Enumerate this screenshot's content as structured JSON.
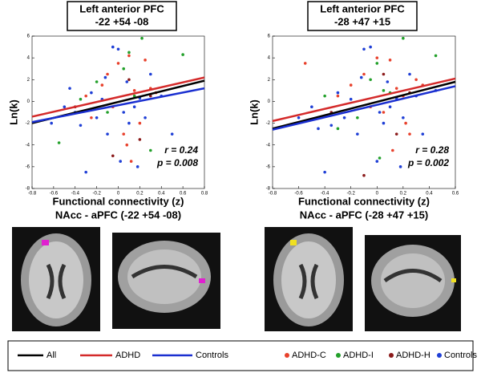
{
  "chart_data": [
    {
      "type": "scatter",
      "title": [
        "Left anterior PFC",
        "-22 +54 -08"
      ],
      "xlabel": [
        "Functional connectivity (z)",
        "NAcc - aPFC (-22 +54 -08)"
      ],
      "ylabel": "Ln(k)",
      "annotations": [
        "r = 0.24",
        "p = 0.008"
      ],
      "xlim": [
        -0.8,
        0.8
      ],
      "ylim": [
        -8,
        6
      ],
      "xticks": [
        -0.8,
        -0.6,
        -0.4,
        -0.2,
        0,
        0.2,
        0.4,
        0.6,
        0.8
      ],
      "yticks": [
        -8,
        -6,
        -4,
        -2,
        0,
        2,
        4,
        6
      ],
      "series": [
        {
          "name": "All",
          "mark": "line",
          "color": "#000000",
          "x": [
            -0.8,
            0.8
          ],
          "values": [
            -2,
            1.9
          ]
        },
        {
          "name": "ADHD",
          "mark": "line",
          "color": "#d42a2a",
          "x": [
            -0.8,
            0.8
          ],
          "values": [
            -1.4,
            2.2
          ]
        },
        {
          "name": "Controls",
          "mark": "line",
          "color": "#1a2fd0",
          "x": [
            -0.8,
            0.8
          ],
          "values": [
            -1.9,
            1.2
          ]
        },
        {
          "name": "ADHD-C",
          "mark": "dot",
          "color": "#e8412c",
          "x": [
            -0.3,
            -0.25,
            -0.1,
            0,
            0.05,
            0.1,
            0.15,
            0.2,
            0.25,
            0.3,
            -0.05,
            0.08,
            0.35,
            -0.15,
            0.12
          ],
          "values": [
            0.5,
            -1.5,
            2.5,
            3.5,
            -3,
            4.2,
            1,
            -2,
            3.8,
            1.2,
            -0.5,
            -4,
            0.8,
            1.5,
            -5.5
          ]
        },
        {
          "name": "ADHD-I",
          "mark": "dot",
          "color": "#22a02a",
          "x": [
            -0.55,
            -0.2,
            0.05,
            0.1,
            0.22,
            0.6,
            -0.1,
            0.15,
            0.3,
            -0.35
          ],
          "values": [
            -3.8,
            1.8,
            3,
            4.5,
            5.8,
            4.3,
            -1,
            0.5,
            -4.5,
            0.2
          ]
        },
        {
          "name": "ADHD-H",
          "mark": "dot",
          "color": "#8b1a1a",
          "x": [
            -0.4,
            0.1,
            0.2,
            -0.05,
            0.3
          ],
          "values": [
            -0.5,
            2,
            -3.5,
            -5,
            0.5
          ]
        },
        {
          "name": "Controls",
          "mark": "dot",
          "color": "#1f3fd6",
          "x": [
            -0.62,
            -0.5,
            -0.4,
            -0.3,
            -0.25,
            -0.2,
            -0.15,
            -0.1,
            -0.05,
            0,
            0.02,
            0.05,
            0.1,
            0.15,
            0.2,
            0.25,
            0.3,
            0.4,
            0.5,
            -0.45,
            -0.35,
            0.08,
            0.18,
            -0.12
          ],
          "values": [
            -2,
            -0.5,
            -1,
            -6.5,
            0.8,
            -1.5,
            0.2,
            -3,
            5,
            4.8,
            -5.5,
            -1,
            -2,
            -0.5,
            0.3,
            -1.5,
            2.5,
            0.5,
            -3,
            1.2,
            -2.2,
            1.8,
            -6,
            2.2
          ]
        }
      ]
    },
    {
      "type": "scatter",
      "title": [
        "Left anterior PFC",
        "-28 +47 +15"
      ],
      "xlabel": [
        "Functional connectivity (z)",
        "NAcc - aPFC (-28 +47 +15)"
      ],
      "ylabel": "Ln(k)",
      "annotations": [
        "r = 0.28",
        "p = 0.002"
      ],
      "xlim": [
        -0.8,
        0.6
      ],
      "ylim": [
        -8,
        6
      ],
      "xticks": [
        -0.8,
        -0.6,
        -0.4,
        -0.2,
        0,
        0.2,
        0.4,
        0.6
      ],
      "yticks": [
        -8,
        -6,
        -4,
        -2,
        0,
        2,
        4,
        6
      ],
      "series": [
        {
          "mark": "line",
          "color": "#000000",
          "x": [
            -0.8,
            0.6
          ],
          "values": [
            -2.5,
            1.8
          ]
        },
        {
          "mark": "line",
          "color": "#d42a2a",
          "x": [
            -0.8,
            0.6
          ],
          "values": [
            -1.8,
            2.1
          ]
        },
        {
          "mark": "line",
          "color": "#1a2fd0",
          "x": [
            -0.8,
            0.6
          ],
          "values": [
            -2.6,
            1.4
          ]
        },
        {
          "mark": "dot",
          "color": "#e8412c",
          "x": [
            -0.55,
            -0.3,
            -0.2,
            -0.1,
            0,
            0.05,
            0.1,
            0.15,
            0.2,
            0.25,
            0.3,
            -0.05,
            0.12,
            0.35,
            0.22
          ],
          "values": [
            3.5,
            0.5,
            1.5,
            2.5,
            4,
            -1,
            3.8,
            1.2,
            0.5,
            -3,
            2,
            -0.5,
            -4.5,
            1.5,
            -2
          ]
        },
        {
          "mark": "dot",
          "color": "#22a02a",
          "x": [
            -0.3,
            -0.05,
            0,
            0.05,
            0.2,
            0.45,
            -0.15,
            0.1,
            0.02,
            -0.4
          ],
          "values": [
            -2.5,
            2,
            3.5,
            1,
            5.8,
            4.2,
            -1.5,
            0.8,
            -5.2,
            0.5
          ]
        },
        {
          "mark": "dot",
          "color": "#8b1a1a",
          "x": [
            -0.35,
            0.05,
            0.15,
            -0.1,
            0.25
          ],
          "values": [
            -1,
            2.5,
            -3,
            -6.8,
            0.8
          ]
        },
        {
          "mark": "dot",
          "color": "#1f3fd6",
          "x": [
            -0.6,
            -0.5,
            -0.45,
            -0.4,
            -0.3,
            -0.25,
            -0.2,
            -0.15,
            -0.1,
            -0.05,
            0,
            0.02,
            0.05,
            0.1,
            0.15,
            0.2,
            0.25,
            0.3,
            0.35,
            0.45,
            -0.35,
            0.08,
            0.18,
            -0.12
          ],
          "values": [
            -1.5,
            -0.5,
            -2.5,
            -6.5,
            0.8,
            -1.5,
            0.2,
            -3,
            4.8,
            5,
            -5.5,
            -1,
            -2,
            -0.5,
            0.3,
            -1.5,
            2.5,
            0.5,
            -3,
            1,
            -2.2,
            1.8,
            -6,
            2.2
          ]
        }
      ]
    }
  ]
}
